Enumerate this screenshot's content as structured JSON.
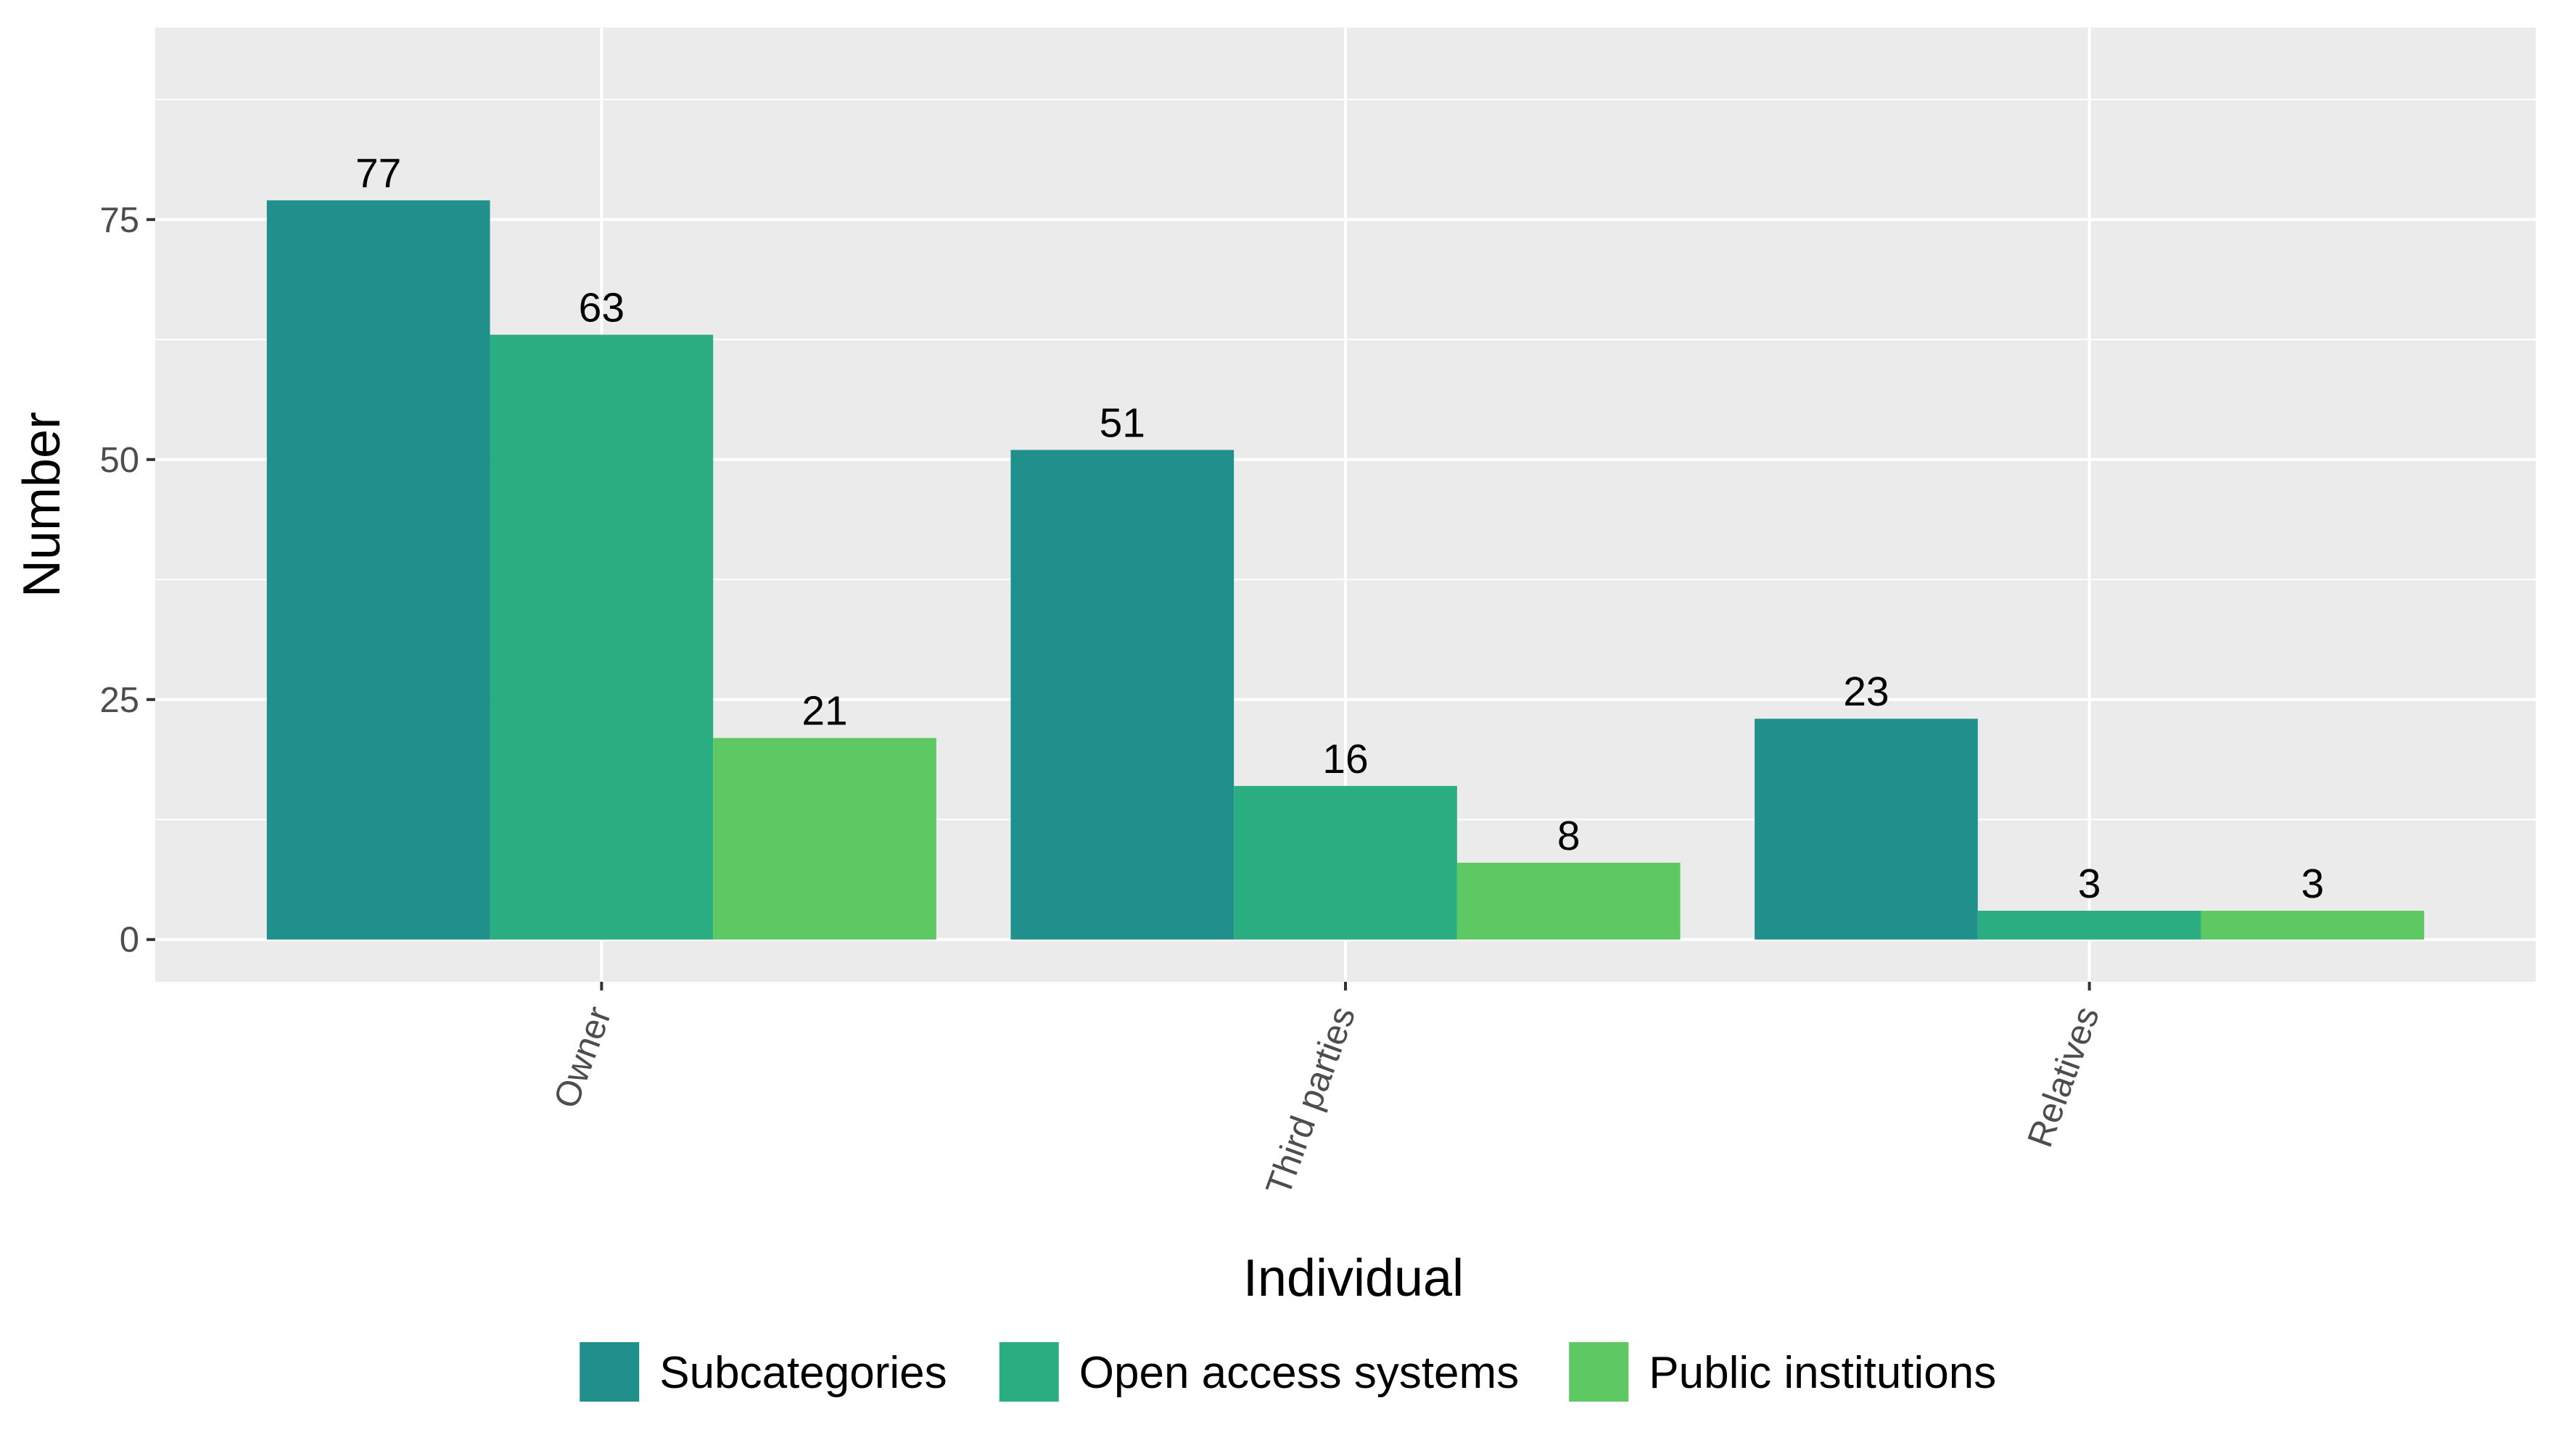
{
  "chart_data": {
    "type": "bar",
    "title": "",
    "xlabel": "Individual",
    "ylabel": "Number",
    "categories": [
      "Owner",
      "Third parties",
      "Relatives"
    ],
    "series": [
      {
        "name": "Subcategories",
        "color": "#21908c",
        "values": [
          77,
          51,
          23
        ]
      },
      {
        "name": "Open access systems",
        "color": "#2aad80",
        "values": [
          63,
          16,
          3
        ]
      },
      {
        "name": "Public institutions",
        "color": "#5ec962",
        "values": [
          21,
          8,
          3
        ]
      }
    ],
    "yticks": [
      0,
      25,
      50,
      75
    ],
    "ylim": [
      -4.4,
      95
    ],
    "grid": true,
    "legend_position": "bottom"
  }
}
